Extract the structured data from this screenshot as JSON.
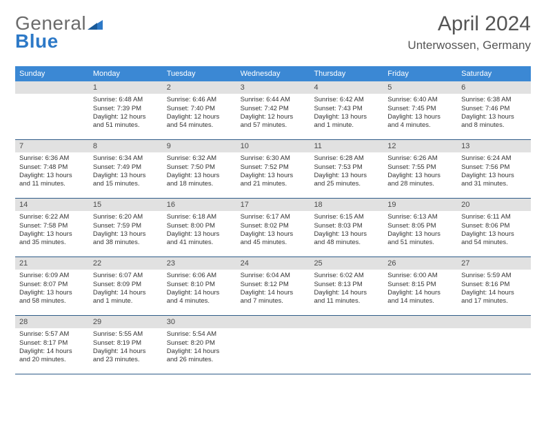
{
  "logo": {
    "part1": "General",
    "part2": "Blue"
  },
  "title": "April 2024",
  "location": "Unterwossen, Germany",
  "colors": {
    "header_bg": "#3b88d4",
    "daynum_bg": "#e1e1e1",
    "week_border": "#2d5a87",
    "text": "#333333",
    "logo_gray": "#6b6b6b",
    "logo_blue": "#2d79c7"
  },
  "weekdays": [
    "Sunday",
    "Monday",
    "Tuesday",
    "Wednesday",
    "Thursday",
    "Friday",
    "Saturday"
  ],
  "weeks": [
    [
      {
        "n": "",
        "empty": true
      },
      {
        "n": "1",
        "sr": "Sunrise: 6:48 AM",
        "ss": "Sunset: 7:39 PM",
        "d1": "Daylight: 12 hours",
        "d2": "and 51 minutes."
      },
      {
        "n": "2",
        "sr": "Sunrise: 6:46 AM",
        "ss": "Sunset: 7:40 PM",
        "d1": "Daylight: 12 hours",
        "d2": "and 54 minutes."
      },
      {
        "n": "3",
        "sr": "Sunrise: 6:44 AM",
        "ss": "Sunset: 7:42 PM",
        "d1": "Daylight: 12 hours",
        "d2": "and 57 minutes."
      },
      {
        "n": "4",
        "sr": "Sunrise: 6:42 AM",
        "ss": "Sunset: 7:43 PM",
        "d1": "Daylight: 13 hours",
        "d2": "and 1 minute."
      },
      {
        "n": "5",
        "sr": "Sunrise: 6:40 AM",
        "ss": "Sunset: 7:45 PM",
        "d1": "Daylight: 13 hours",
        "d2": "and 4 minutes."
      },
      {
        "n": "6",
        "sr": "Sunrise: 6:38 AM",
        "ss": "Sunset: 7:46 PM",
        "d1": "Daylight: 13 hours",
        "d2": "and 8 minutes."
      }
    ],
    [
      {
        "n": "7",
        "sr": "Sunrise: 6:36 AM",
        "ss": "Sunset: 7:48 PM",
        "d1": "Daylight: 13 hours",
        "d2": "and 11 minutes."
      },
      {
        "n": "8",
        "sr": "Sunrise: 6:34 AM",
        "ss": "Sunset: 7:49 PM",
        "d1": "Daylight: 13 hours",
        "d2": "and 15 minutes."
      },
      {
        "n": "9",
        "sr": "Sunrise: 6:32 AM",
        "ss": "Sunset: 7:50 PM",
        "d1": "Daylight: 13 hours",
        "d2": "and 18 minutes."
      },
      {
        "n": "10",
        "sr": "Sunrise: 6:30 AM",
        "ss": "Sunset: 7:52 PM",
        "d1": "Daylight: 13 hours",
        "d2": "and 21 minutes."
      },
      {
        "n": "11",
        "sr": "Sunrise: 6:28 AM",
        "ss": "Sunset: 7:53 PM",
        "d1": "Daylight: 13 hours",
        "d2": "and 25 minutes."
      },
      {
        "n": "12",
        "sr": "Sunrise: 6:26 AM",
        "ss": "Sunset: 7:55 PM",
        "d1": "Daylight: 13 hours",
        "d2": "and 28 minutes."
      },
      {
        "n": "13",
        "sr": "Sunrise: 6:24 AM",
        "ss": "Sunset: 7:56 PM",
        "d1": "Daylight: 13 hours",
        "d2": "and 31 minutes."
      }
    ],
    [
      {
        "n": "14",
        "sr": "Sunrise: 6:22 AM",
        "ss": "Sunset: 7:58 PM",
        "d1": "Daylight: 13 hours",
        "d2": "and 35 minutes."
      },
      {
        "n": "15",
        "sr": "Sunrise: 6:20 AM",
        "ss": "Sunset: 7:59 PM",
        "d1": "Daylight: 13 hours",
        "d2": "and 38 minutes."
      },
      {
        "n": "16",
        "sr": "Sunrise: 6:18 AM",
        "ss": "Sunset: 8:00 PM",
        "d1": "Daylight: 13 hours",
        "d2": "and 41 minutes."
      },
      {
        "n": "17",
        "sr": "Sunrise: 6:17 AM",
        "ss": "Sunset: 8:02 PM",
        "d1": "Daylight: 13 hours",
        "d2": "and 45 minutes."
      },
      {
        "n": "18",
        "sr": "Sunrise: 6:15 AM",
        "ss": "Sunset: 8:03 PM",
        "d1": "Daylight: 13 hours",
        "d2": "and 48 minutes."
      },
      {
        "n": "19",
        "sr": "Sunrise: 6:13 AM",
        "ss": "Sunset: 8:05 PM",
        "d1": "Daylight: 13 hours",
        "d2": "and 51 minutes."
      },
      {
        "n": "20",
        "sr": "Sunrise: 6:11 AM",
        "ss": "Sunset: 8:06 PM",
        "d1": "Daylight: 13 hours",
        "d2": "and 54 minutes."
      }
    ],
    [
      {
        "n": "21",
        "sr": "Sunrise: 6:09 AM",
        "ss": "Sunset: 8:07 PM",
        "d1": "Daylight: 13 hours",
        "d2": "and 58 minutes."
      },
      {
        "n": "22",
        "sr": "Sunrise: 6:07 AM",
        "ss": "Sunset: 8:09 PM",
        "d1": "Daylight: 14 hours",
        "d2": "and 1 minute."
      },
      {
        "n": "23",
        "sr": "Sunrise: 6:06 AM",
        "ss": "Sunset: 8:10 PM",
        "d1": "Daylight: 14 hours",
        "d2": "and 4 minutes."
      },
      {
        "n": "24",
        "sr": "Sunrise: 6:04 AM",
        "ss": "Sunset: 8:12 PM",
        "d1": "Daylight: 14 hours",
        "d2": "and 7 minutes."
      },
      {
        "n": "25",
        "sr": "Sunrise: 6:02 AM",
        "ss": "Sunset: 8:13 PM",
        "d1": "Daylight: 14 hours",
        "d2": "and 11 minutes."
      },
      {
        "n": "26",
        "sr": "Sunrise: 6:00 AM",
        "ss": "Sunset: 8:15 PM",
        "d1": "Daylight: 14 hours",
        "d2": "and 14 minutes."
      },
      {
        "n": "27",
        "sr": "Sunrise: 5:59 AM",
        "ss": "Sunset: 8:16 PM",
        "d1": "Daylight: 14 hours",
        "d2": "and 17 minutes."
      }
    ],
    [
      {
        "n": "28",
        "sr": "Sunrise: 5:57 AM",
        "ss": "Sunset: 8:17 PM",
        "d1": "Daylight: 14 hours",
        "d2": "and 20 minutes."
      },
      {
        "n": "29",
        "sr": "Sunrise: 5:55 AM",
        "ss": "Sunset: 8:19 PM",
        "d1": "Daylight: 14 hours",
        "d2": "and 23 minutes."
      },
      {
        "n": "30",
        "sr": "Sunrise: 5:54 AM",
        "ss": "Sunset: 8:20 PM",
        "d1": "Daylight: 14 hours",
        "d2": "and 26 minutes."
      },
      {
        "n": "",
        "empty": true
      },
      {
        "n": "",
        "empty": true
      },
      {
        "n": "",
        "empty": true
      },
      {
        "n": "",
        "empty": true
      }
    ]
  ]
}
